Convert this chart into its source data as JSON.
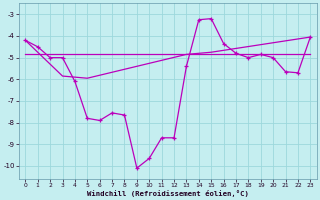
{
  "xlabel": "Windchill (Refroidissement éolien,°C)",
  "background_color": "#c5eef0",
  "grid_color": "#9dd8dc",
  "line_color": "#bb00bb",
  "x": [
    0,
    1,
    2,
    3,
    4,
    5,
    6,
    7,
    8,
    9,
    10,
    11,
    12,
    13,
    14,
    15,
    16,
    17,
    18,
    19,
    20,
    21,
    22,
    23
  ],
  "line1": [
    -4.2,
    -4.5,
    -5.0,
    -5.0,
    -6.1,
    -7.8,
    -7.9,
    -7.55,
    -7.65,
    -10.1,
    -9.65,
    -8.7,
    -8.7,
    -5.4,
    -3.25,
    -3.2,
    -4.35,
    -4.8,
    -5.0,
    -4.85,
    -5.0,
    -5.65,
    -5.7,
    -4.05
  ],
  "line2_x": [
    0,
    23
  ],
  "line2_y": [
    -4.85,
    -4.85
  ],
  "line3_x": [
    0,
    3,
    5,
    13,
    15,
    23
  ],
  "line3_y": [
    -4.2,
    -5.85,
    -5.95,
    -4.85,
    -4.75,
    -4.05
  ],
  "ylim": [
    -10.6,
    -2.5
  ],
  "xlim": [
    -0.5,
    23.5
  ],
  "yticks": [
    -3,
    -4,
    -5,
    -6,
    -7,
    -8,
    -9,
    -10
  ],
  "xticks": [
    0,
    1,
    2,
    3,
    4,
    5,
    6,
    7,
    8,
    9,
    10,
    11,
    12,
    13,
    14,
    15,
    16,
    17,
    18,
    19,
    20,
    21,
    22,
    23
  ]
}
